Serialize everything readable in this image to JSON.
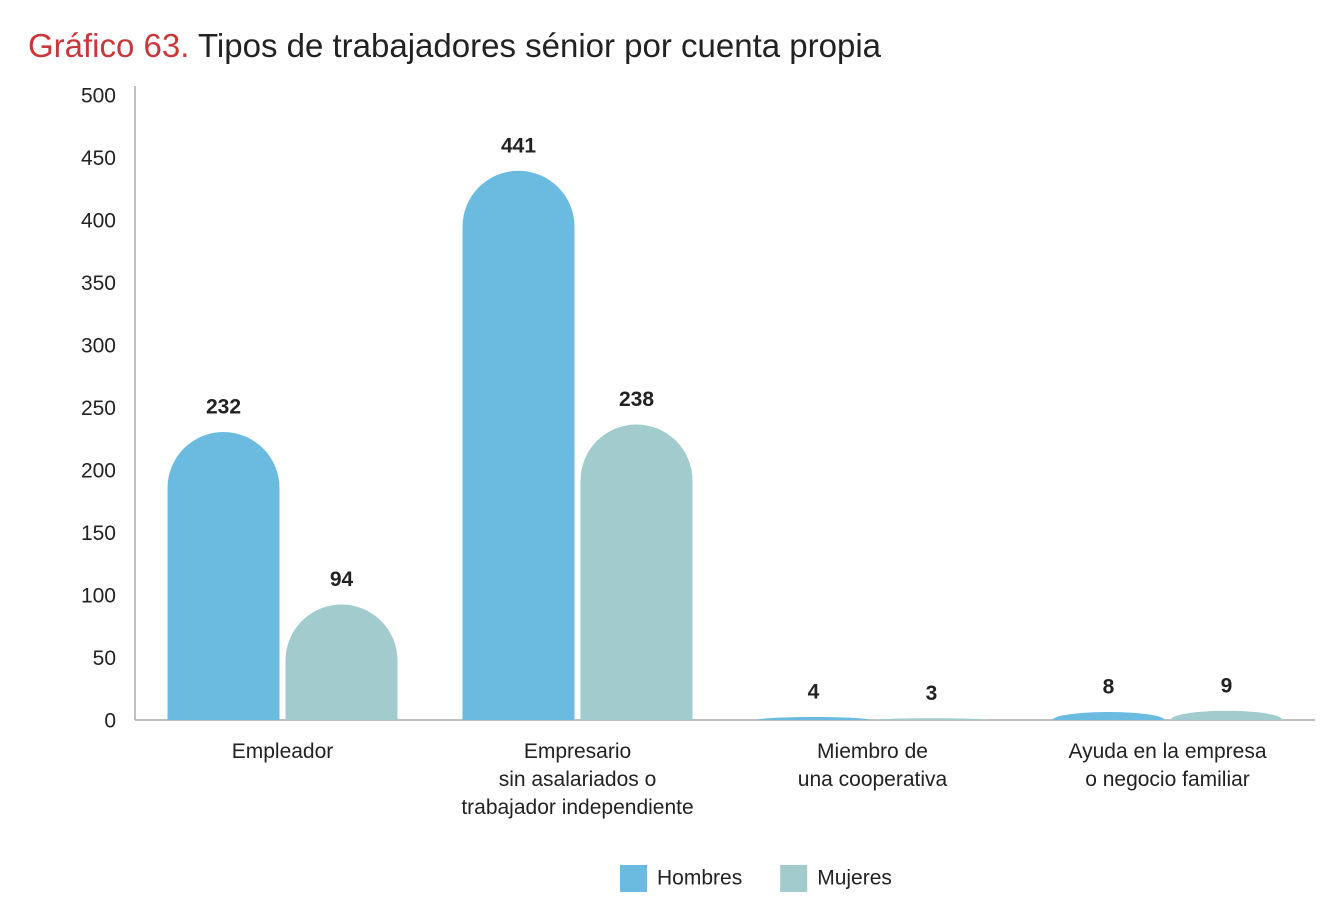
{
  "chart_data": {
    "type": "bar",
    "title_label": "Gráfico 63.",
    "title": "Tipos de trabajadores sénior por cuenta propia",
    "categories": [
      "Empleador",
      "Empresario\nsin asalariados o\ntrabajador independiente",
      "Miembro de\nuna cooperativa",
      "Ayuda en la empresa\no negocio familiar"
    ],
    "series": [
      {
        "name": "Hombres",
        "color": "#6bbbe0",
        "values": [
          232,
          441,
          4,
          8
        ]
      },
      {
        "name": "Mujeres",
        "color": "#a1cbcc",
        "values": [
          94,
          238,
          3,
          9
        ]
      }
    ],
    "ylim": [
      0,
      500
    ],
    "yticks": [
      0,
      50,
      100,
      150,
      200,
      250,
      300,
      350,
      400,
      450,
      500
    ],
    "title_color": "#c9373b"
  }
}
